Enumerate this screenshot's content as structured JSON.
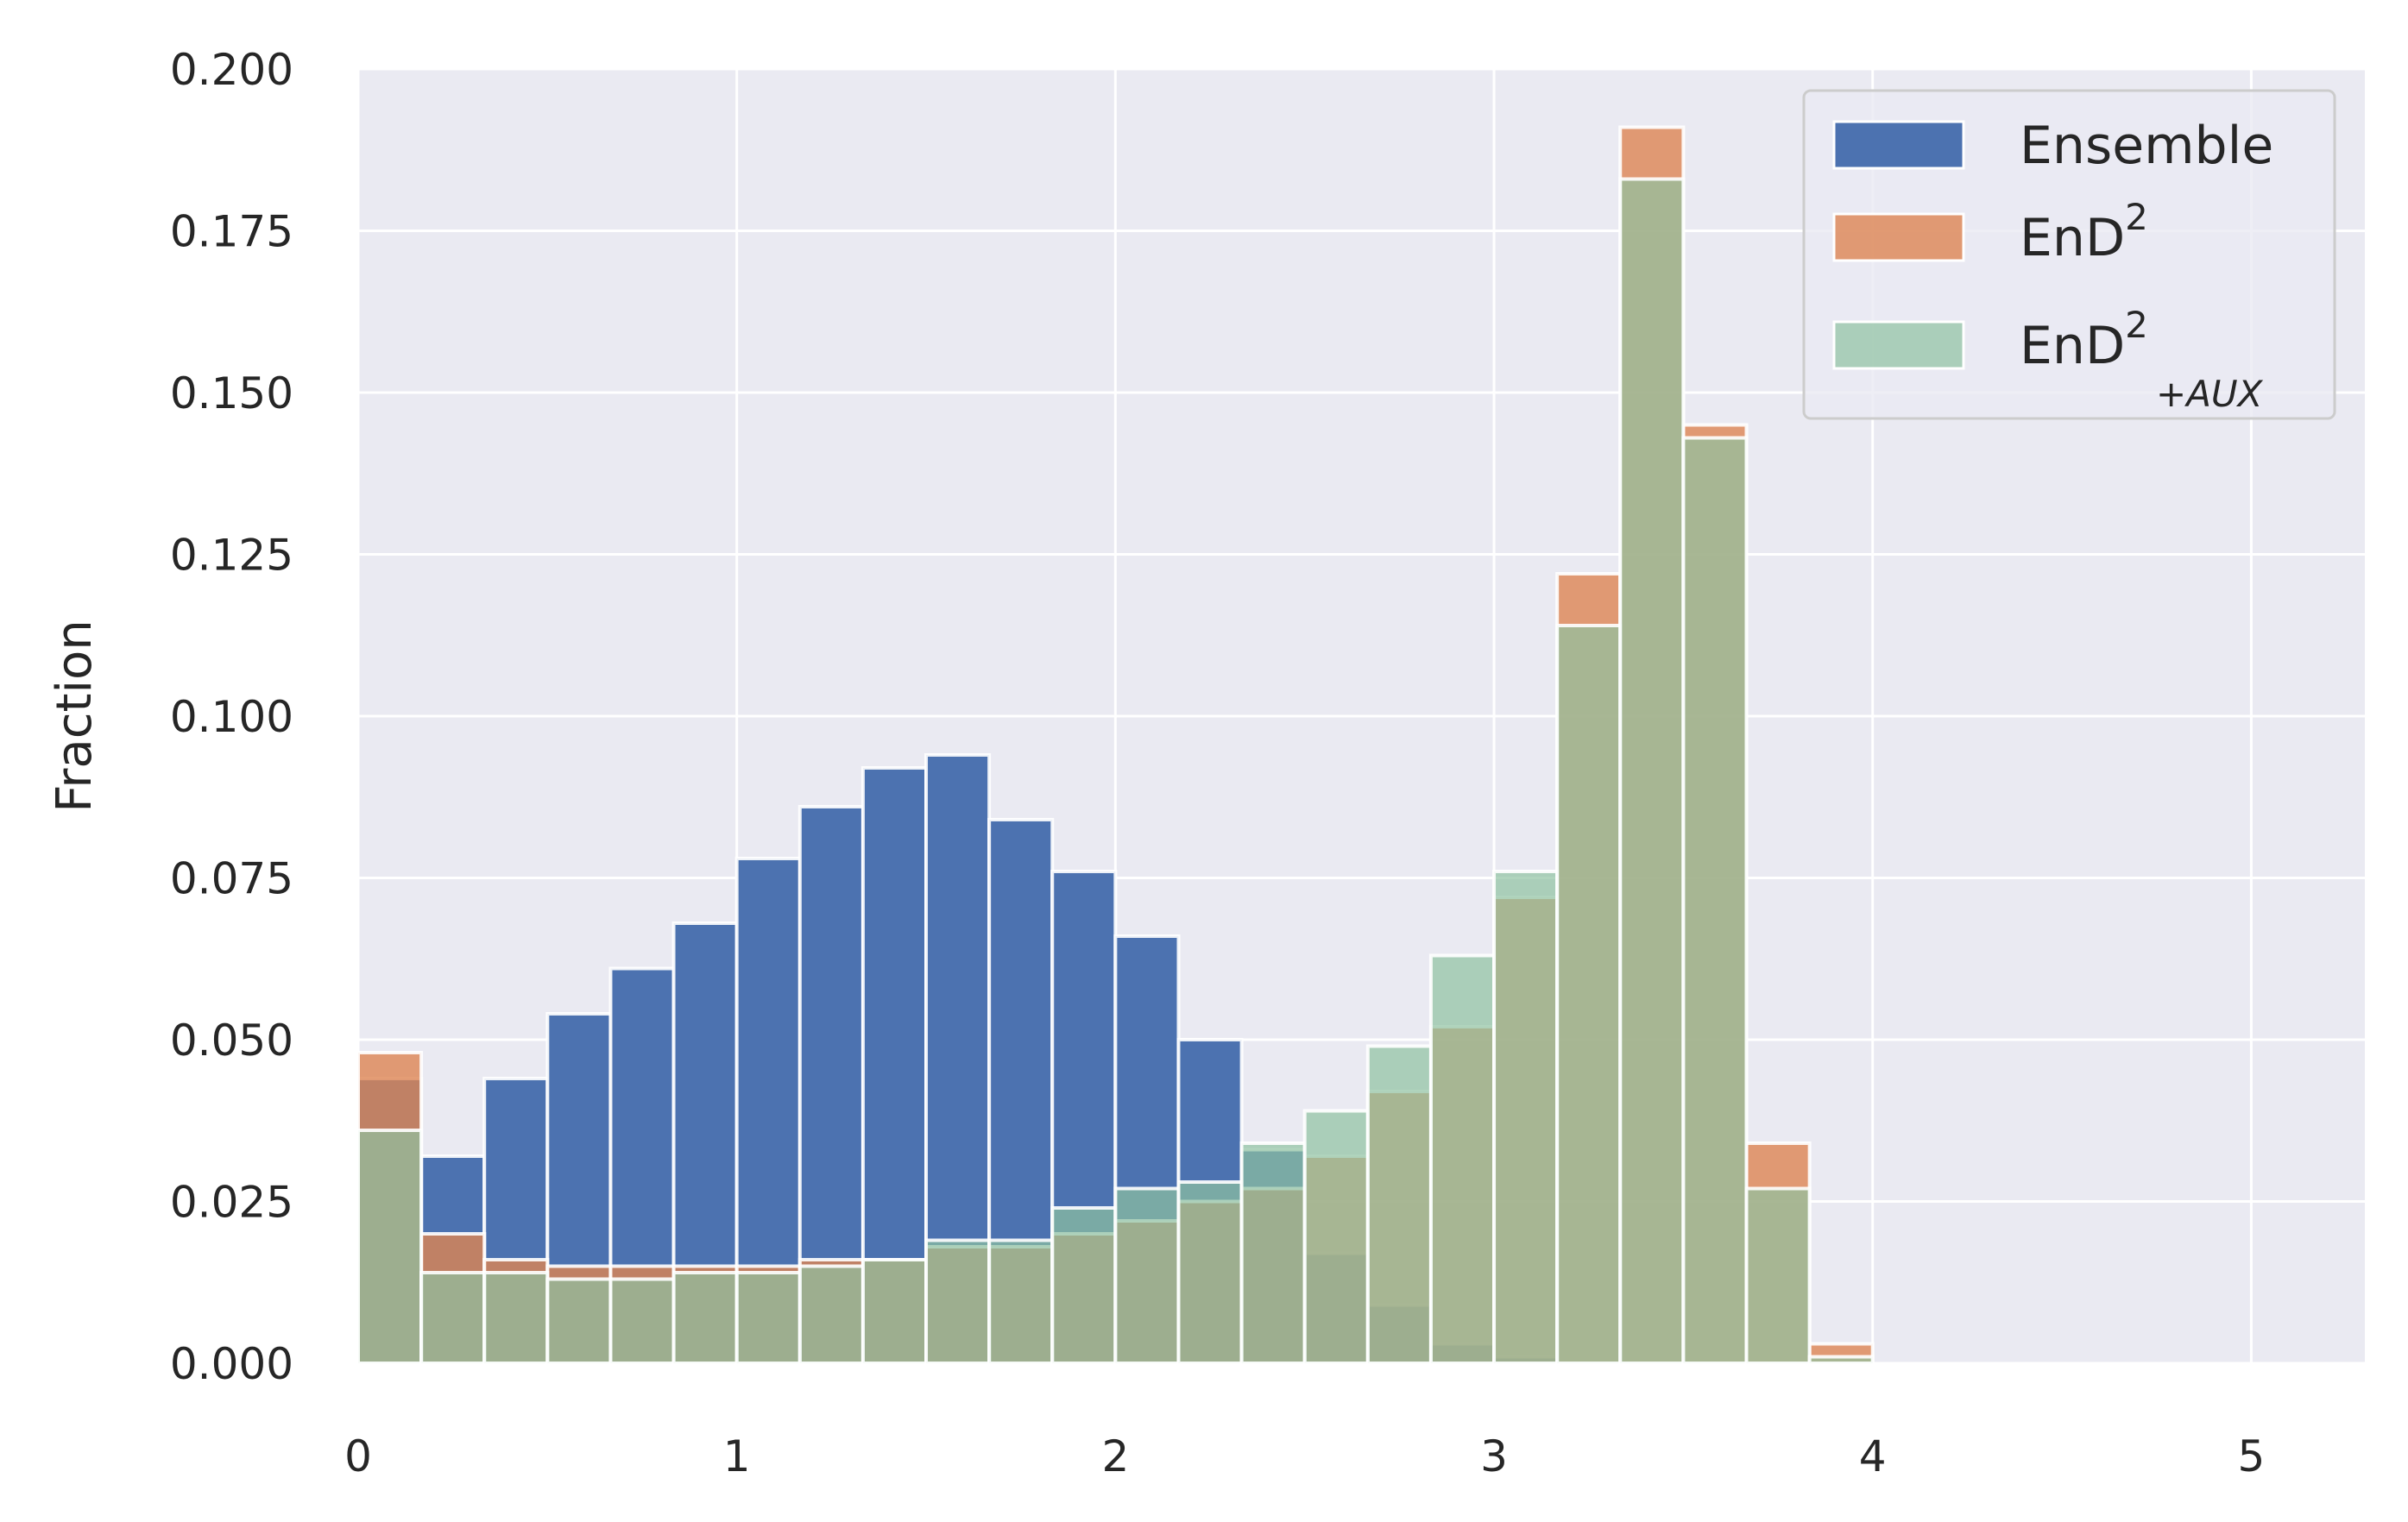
{
  "chart_data": {
    "type": "bar",
    "title": "",
    "xlabel": "",
    "ylabel": "Fraction",
    "xlim": [
      0,
      5.3
    ],
    "ylim": [
      0,
      0.2
    ],
    "x_ticks": [
      "0",
      "1",
      "2",
      "3",
      "4",
      "5"
    ],
    "y_ticks": [
      "0.000",
      "0.025",
      "0.050",
      "0.075",
      "0.100",
      "0.125",
      "0.150",
      "0.175",
      "0.200"
    ],
    "grid": true,
    "legend_position": "top-right",
    "bin_width": 0.1667,
    "bin_starts": [
      0,
      0.1667,
      0.3333,
      0.5,
      0.6667,
      0.8333,
      1.0,
      1.1667,
      1.3333,
      1.5,
      1.6667,
      1.8333,
      2.0,
      2.1667,
      2.3333,
      2.5,
      2.6667,
      2.8333,
      3.0,
      3.1667,
      3.3333,
      3.5,
      3.6667,
      3.8333
    ],
    "series": [
      {
        "name": "Ensemble",
        "color": "#4c72b0",
        "opacity": 1.0,
        "values": [
          0.044,
          0.032,
          0.044,
          0.054,
          0.061,
          0.068,
          0.078,
          0.086,
          0.092,
          0.094,
          0.084,
          0.076,
          0.066,
          0.05,
          0.033,
          0.017,
          0.009,
          0.003,
          0.001,
          0.0,
          0.0,
          0.0,
          0.0,
          0.0
        ]
      },
      {
        "name": "EnD",
        "sup": "2",
        "color": "#dd8452",
        "opacity": 0.8,
        "values": [
          0.048,
          0.02,
          0.016,
          0.015,
          0.015,
          0.015,
          0.015,
          0.016,
          0.016,
          0.018,
          0.018,
          0.02,
          0.022,
          0.025,
          0.027,
          0.032,
          0.042,
          0.052,
          0.072,
          0.122,
          0.191,
          0.145,
          0.034,
          0.003
        ]
      },
      {
        "name": "EnD",
        "sup": "2",
        "sub": "+AUX",
        "color": "#8fc2a1",
        "opacity": 0.7,
        "values": [
          0.036,
          0.014,
          0.014,
          0.013,
          0.013,
          0.014,
          0.014,
          0.015,
          0.016,
          0.019,
          0.019,
          0.024,
          0.027,
          0.028,
          0.034,
          0.039,
          0.049,
          0.063,
          0.076,
          0.114,
          0.183,
          0.143,
          0.027,
          0.001
        ]
      }
    ]
  }
}
